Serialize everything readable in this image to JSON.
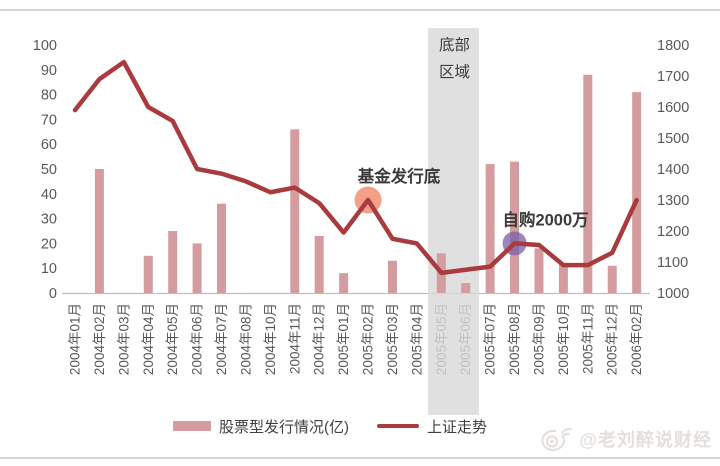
{
  "chart_data": {
    "type": "bar+line",
    "title": "",
    "categories": [
      "2004年01月",
      "2004年02月",
      "2004年03月",
      "2004年04月",
      "2004年05月",
      "2004年06月",
      "2004年07月",
      "2004年08月",
      "2004年10月",
      "2004年11月",
      "2004年12月",
      "2005年01月",
      "2005年02月",
      "2005年03月",
      "2005年04月",
      "2005年05月",
      "2005年06月",
      "2005年07月",
      "2005年08月",
      "2005年09月",
      "2005年10月",
      "2005年11月",
      "2005年12月",
      "2006年02月"
    ],
    "series": [
      {
        "name": "股票型发行情况(亿)",
        "type": "bar",
        "axis": "left",
        "color": "#d59c9f",
        "values": [
          0,
          50,
          0,
          15,
          25,
          20,
          36,
          0,
          0,
          66,
          23,
          8,
          0,
          13,
          0,
          16,
          4,
          52,
          53,
          18,
          12,
          88,
          11,
          81
        ]
      },
      {
        "name": "上证走势",
        "type": "line",
        "axis": "right",
        "color": "#a93b3f",
        "values": [
          1590,
          1690,
          1745,
          1600,
          1555,
          1400,
          1385,
          1360,
          1325,
          1340,
          1290,
          1195,
          1300,
          1175,
          1160,
          1065,
          1075,
          1085,
          1160,
          1155,
          1090,
          1090,
          1130,
          1300
        ]
      }
    ],
    "left_axis": {
      "min": 0,
      "max": 100,
      "step": 10,
      "tick_labels": [
        "0",
        "10",
        "20",
        "30",
        "40",
        "50",
        "60",
        "70",
        "80",
        "90",
        "100"
      ]
    },
    "right_axis": {
      "min": 1000,
      "max": 1800,
      "step": 100,
      "tick_labels": [
        "1000",
        "1100",
        "1200",
        "1300",
        "1400",
        "1500",
        "1600",
        "1700",
        "1800"
      ]
    },
    "grid": false,
    "band": {
      "label_lines": [
        "底部",
        "区域"
      ],
      "from_category": "2005年05月",
      "to_category": "2005年06月",
      "from_index": 15,
      "to_index": 16,
      "color": "#d9d9d9",
      "label_color": "#3d3d3d"
    },
    "annotations": [
      {
        "text": "基金发行底",
        "category": "2005年02月",
        "category_index": 12,
        "value": 1300,
        "marker": "circle",
        "marker_color": "#ee8060",
        "text_color": "#3a3a3a"
      },
      {
        "text": "自购2000万",
        "category": "2005年08月",
        "category_index": 18,
        "value": 1160,
        "marker": "circle",
        "marker_color": "#7a5fa8",
        "text_color": "#3a3a3a"
      }
    ],
    "legend": [
      {
        "label": "股票型发行情况(亿)",
        "swatch": "bar",
        "color": "#d59c9f"
      },
      {
        "label": "上证走势",
        "swatch": "line",
        "color": "#a93b3f"
      }
    ],
    "legend_position": "bottom-center",
    "axis_text_color": "#595959"
  },
  "watermark": {
    "icon": "weibo-icon",
    "text": "@老刘醉说财经",
    "color": "#c9c1ba"
  }
}
